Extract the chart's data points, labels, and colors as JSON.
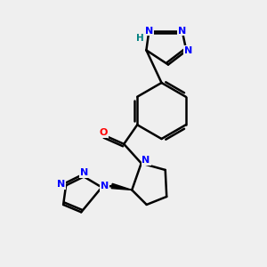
{
  "background_color": "#efefef",
  "bond_color": "#000000",
  "bond_width": 1.8,
  "atom_colors": {
    "N": "#0000FF",
    "O": "#FF0000",
    "C": "#000000",
    "H": "#008080"
  },
  "font_size": 8.0
}
